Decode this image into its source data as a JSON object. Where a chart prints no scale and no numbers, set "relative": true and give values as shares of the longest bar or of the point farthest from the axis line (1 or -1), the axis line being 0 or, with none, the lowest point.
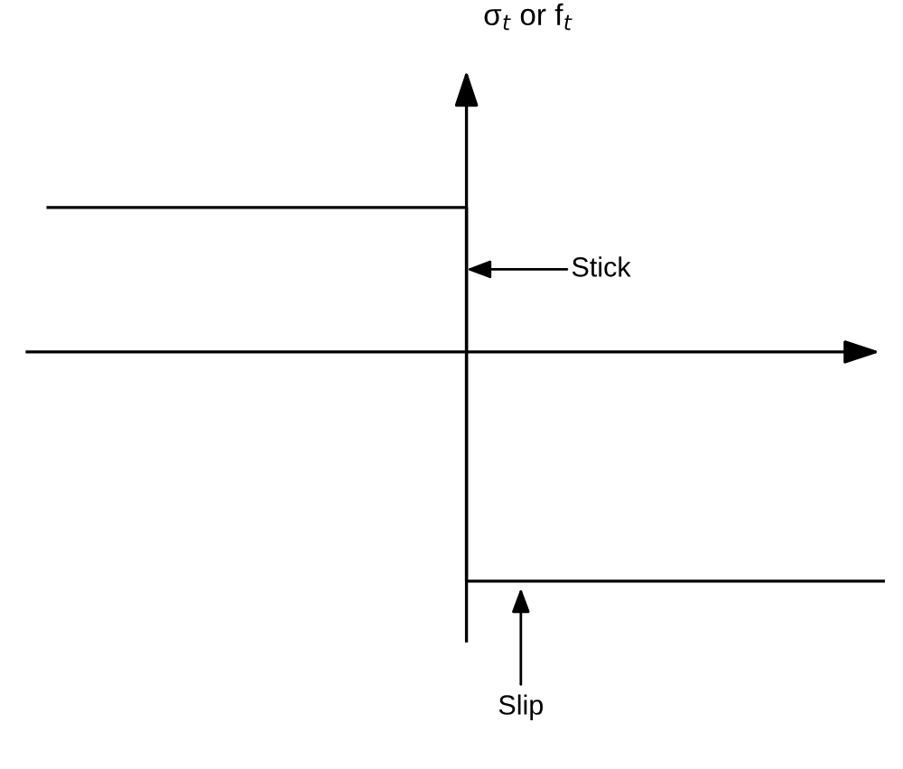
{
  "chart_data": {
    "type": "step",
    "relative": true,
    "categories": [
      null,
      null,
      null
    ],
    "series": [
      {
        "color": "#000000",
        "values": [
          0.63,
          -1,
          -1
        ]
      }
    ],
    "annotations": [
      "σ$_{t}$ or f$_{t}$",
      "Stick",
      "Slip"
    ]
  }
}
